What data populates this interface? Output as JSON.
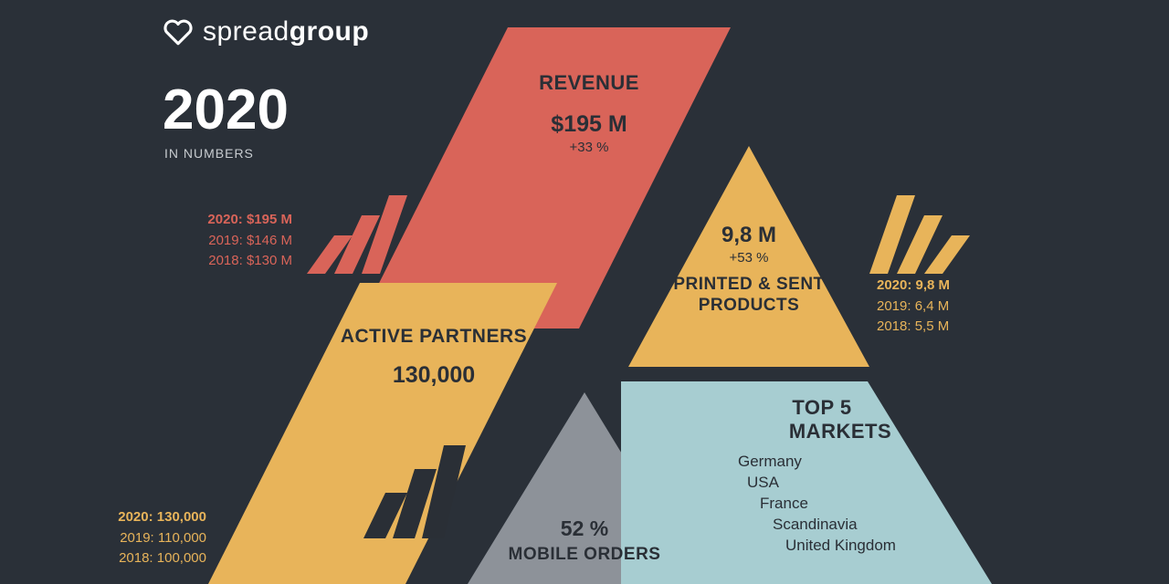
{
  "colors": {
    "bg": "#2a3038",
    "red": "#d96459",
    "yellow": "#e8b45a",
    "blue": "#a7cdd1",
    "gray": "#8d9299",
    "dark": "#2a2f36",
    "white": "#ffffff",
    "muted": "#c8ccd0"
  },
  "brand": {
    "name_light": "spread",
    "name_bold": "group"
  },
  "header": {
    "year": "2020",
    "subtitle": "IN NUMBERS"
  },
  "revenue": {
    "title": "REVENUE",
    "value": "$195 M",
    "delta": "+33 %",
    "history": [
      {
        "year": "2020",
        "val": "$195 M"
      },
      {
        "year": "2019",
        "val": "$146 M"
      },
      {
        "year": "2018",
        "val": "$130 M"
      }
    ]
  },
  "partners": {
    "title": "ACTIVE PARTNERS",
    "value": "130,000",
    "history": [
      {
        "year": "2020",
        "val": "130,000"
      },
      {
        "year": "2019",
        "val": "110,000"
      },
      {
        "year": "2018",
        "val": "100,000"
      }
    ]
  },
  "products": {
    "value": "9,8 M",
    "delta": "+53 %",
    "title": "PRINTED & SENT PRODUCTS",
    "history": [
      {
        "year": "2020",
        "val": "9,8 M"
      },
      {
        "year": "2019",
        "val": "6,4 M"
      },
      {
        "year": "2018",
        "val": "5,5 M"
      }
    ]
  },
  "mobile": {
    "value": "52 %",
    "title": "MOBILE ORDERS"
  },
  "markets": {
    "title": "TOP 5 MARKETS",
    "list": [
      "Germany",
      "USA",
      "France",
      "Scandinavia",
      "United Kingdom"
    ]
  }
}
